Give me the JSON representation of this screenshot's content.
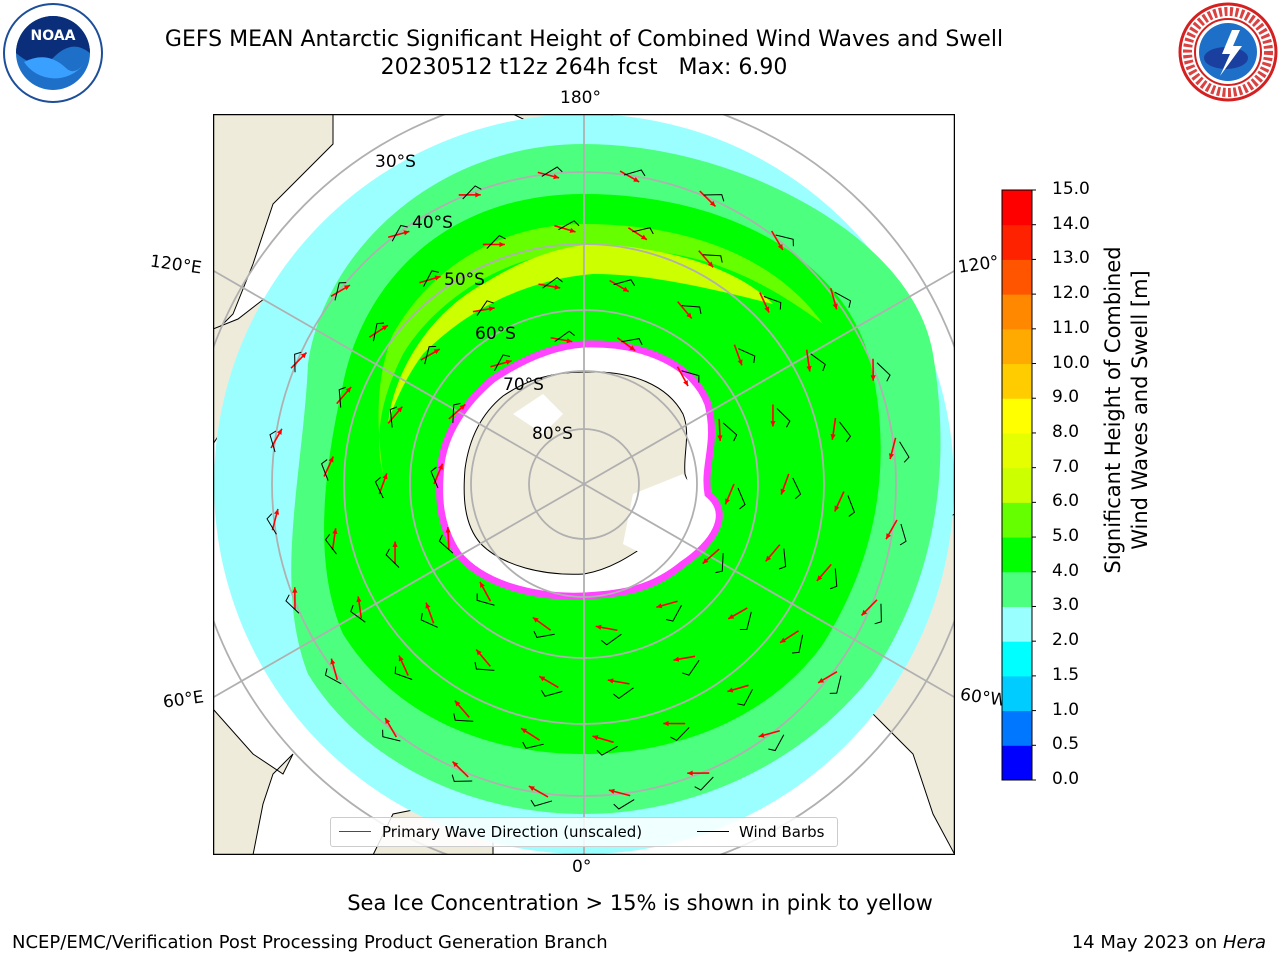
{
  "title": {
    "line1": "GEFS MEAN Antarctic Significant Height of Combined Wind Waves and Swell",
    "line2": "20230512 t12z 264h fcst   Max: 6.90"
  },
  "logos": {
    "left": "noaa-logo",
    "left_text": "NOAA",
    "right": "nws-logo"
  },
  "map": {
    "projection": "south-polar-stereographic",
    "longitude_labels": {
      "top": "180°",
      "bottom": "0°",
      "upper_left": "120°E",
      "lower_left": "60°E",
      "upper_right": "120°",
      "lower_right": "60°W"
    },
    "latitude_labels": [
      "30°S",
      "40°S",
      "50°S",
      "60°S",
      "70°S",
      "80°S"
    ],
    "colors": {
      "land": "#efebdb",
      "ice_sheet": "#ffffff",
      "sea_ice": "#ff00ff",
      "graticule": "#b0b0b0",
      "arrows": "#ff0000",
      "barbs": "#000000"
    }
  },
  "colorbar": {
    "label_line1": "Significant Height of Combined",
    "label_line2": "Wind Waves and Swell [m]",
    "ticks": [
      "15.0",
      "14.0",
      "13.0",
      "12.0",
      "11.0",
      "10.0",
      "9.0",
      "8.0",
      "7.0",
      "6.0",
      "5.0",
      "4.0",
      "3.0",
      "2.0",
      "1.5",
      "1.0",
      "0.5",
      "0.0"
    ],
    "levels": [
      0.0,
      0.5,
      1.0,
      1.5,
      2.0,
      3.0,
      4.0,
      5.0,
      6.0,
      7.0,
      8.0,
      9.0,
      10.0,
      11.0,
      12.0,
      13.0,
      14.0,
      15.0
    ],
    "colors": [
      "#0000ff",
      "#0077ff",
      "#00ccff",
      "#00ffff",
      "#99ffff",
      "#4dff7f",
      "#00ff00",
      "#66ff00",
      "#ccff00",
      "#e6ff00",
      "#ffff00",
      "#ffcc00",
      "#ffaa00",
      "#ff8800",
      "#ff5500",
      "#ff2200",
      "#ff0000"
    ]
  },
  "legend": {
    "arrow_label": "Primary Wave Direction (unscaled)",
    "barb_label": "Wind Barbs"
  },
  "footnote": "Sea Ice Concentration > 15% is shown in pink to yellow",
  "credits": {
    "left": "NCEP/EMC/Verification Post Processing Product Generation Branch",
    "right_date": "14 May 2023 on ",
    "right_host": "Hera"
  }
}
